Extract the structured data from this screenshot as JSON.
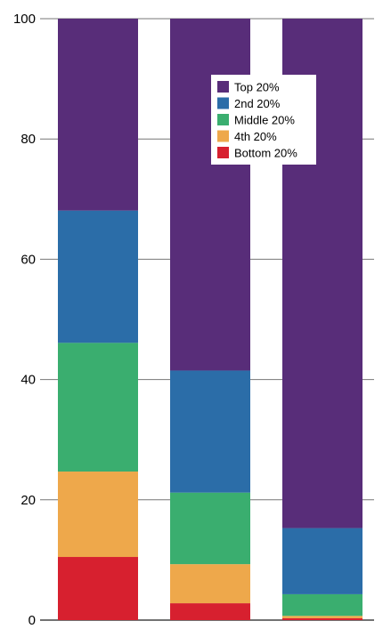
{
  "chart_data": {
    "type": "bar",
    "stacked": true,
    "categories": [
      "",
      "",
      ""
    ],
    "ylim": [
      0,
      100
    ],
    "yticks": [
      0,
      20,
      40,
      60,
      80,
      100
    ],
    "grid": true,
    "legend_position": "top-right",
    "series": [
      {
        "name": "Bottom 20%",
        "color": "#d7202f",
        "values": [
          10.5,
          2.8,
          0.3
        ]
      },
      {
        "name": "4th 20%",
        "color": "#eea84b",
        "values": [
          14.2,
          6.5,
          0.4
        ]
      },
      {
        "name": "Middle 20%",
        "color": "#3aae6f",
        "values": [
          21.4,
          11.9,
          3.6
        ]
      },
      {
        "name": "2nd 20%",
        "color": "#2b6da8",
        "values": [
          22.0,
          20.3,
          11.0
        ]
      },
      {
        "name": "Top 20%",
        "color": "#582d79",
        "values": [
          31.9,
          58.5,
          84.7
        ]
      }
    ],
    "legend_order": [
      "Top 20%",
      "2nd 20%",
      "Middle 20%",
      "4th 20%",
      "Bottom 20%"
    ]
  }
}
